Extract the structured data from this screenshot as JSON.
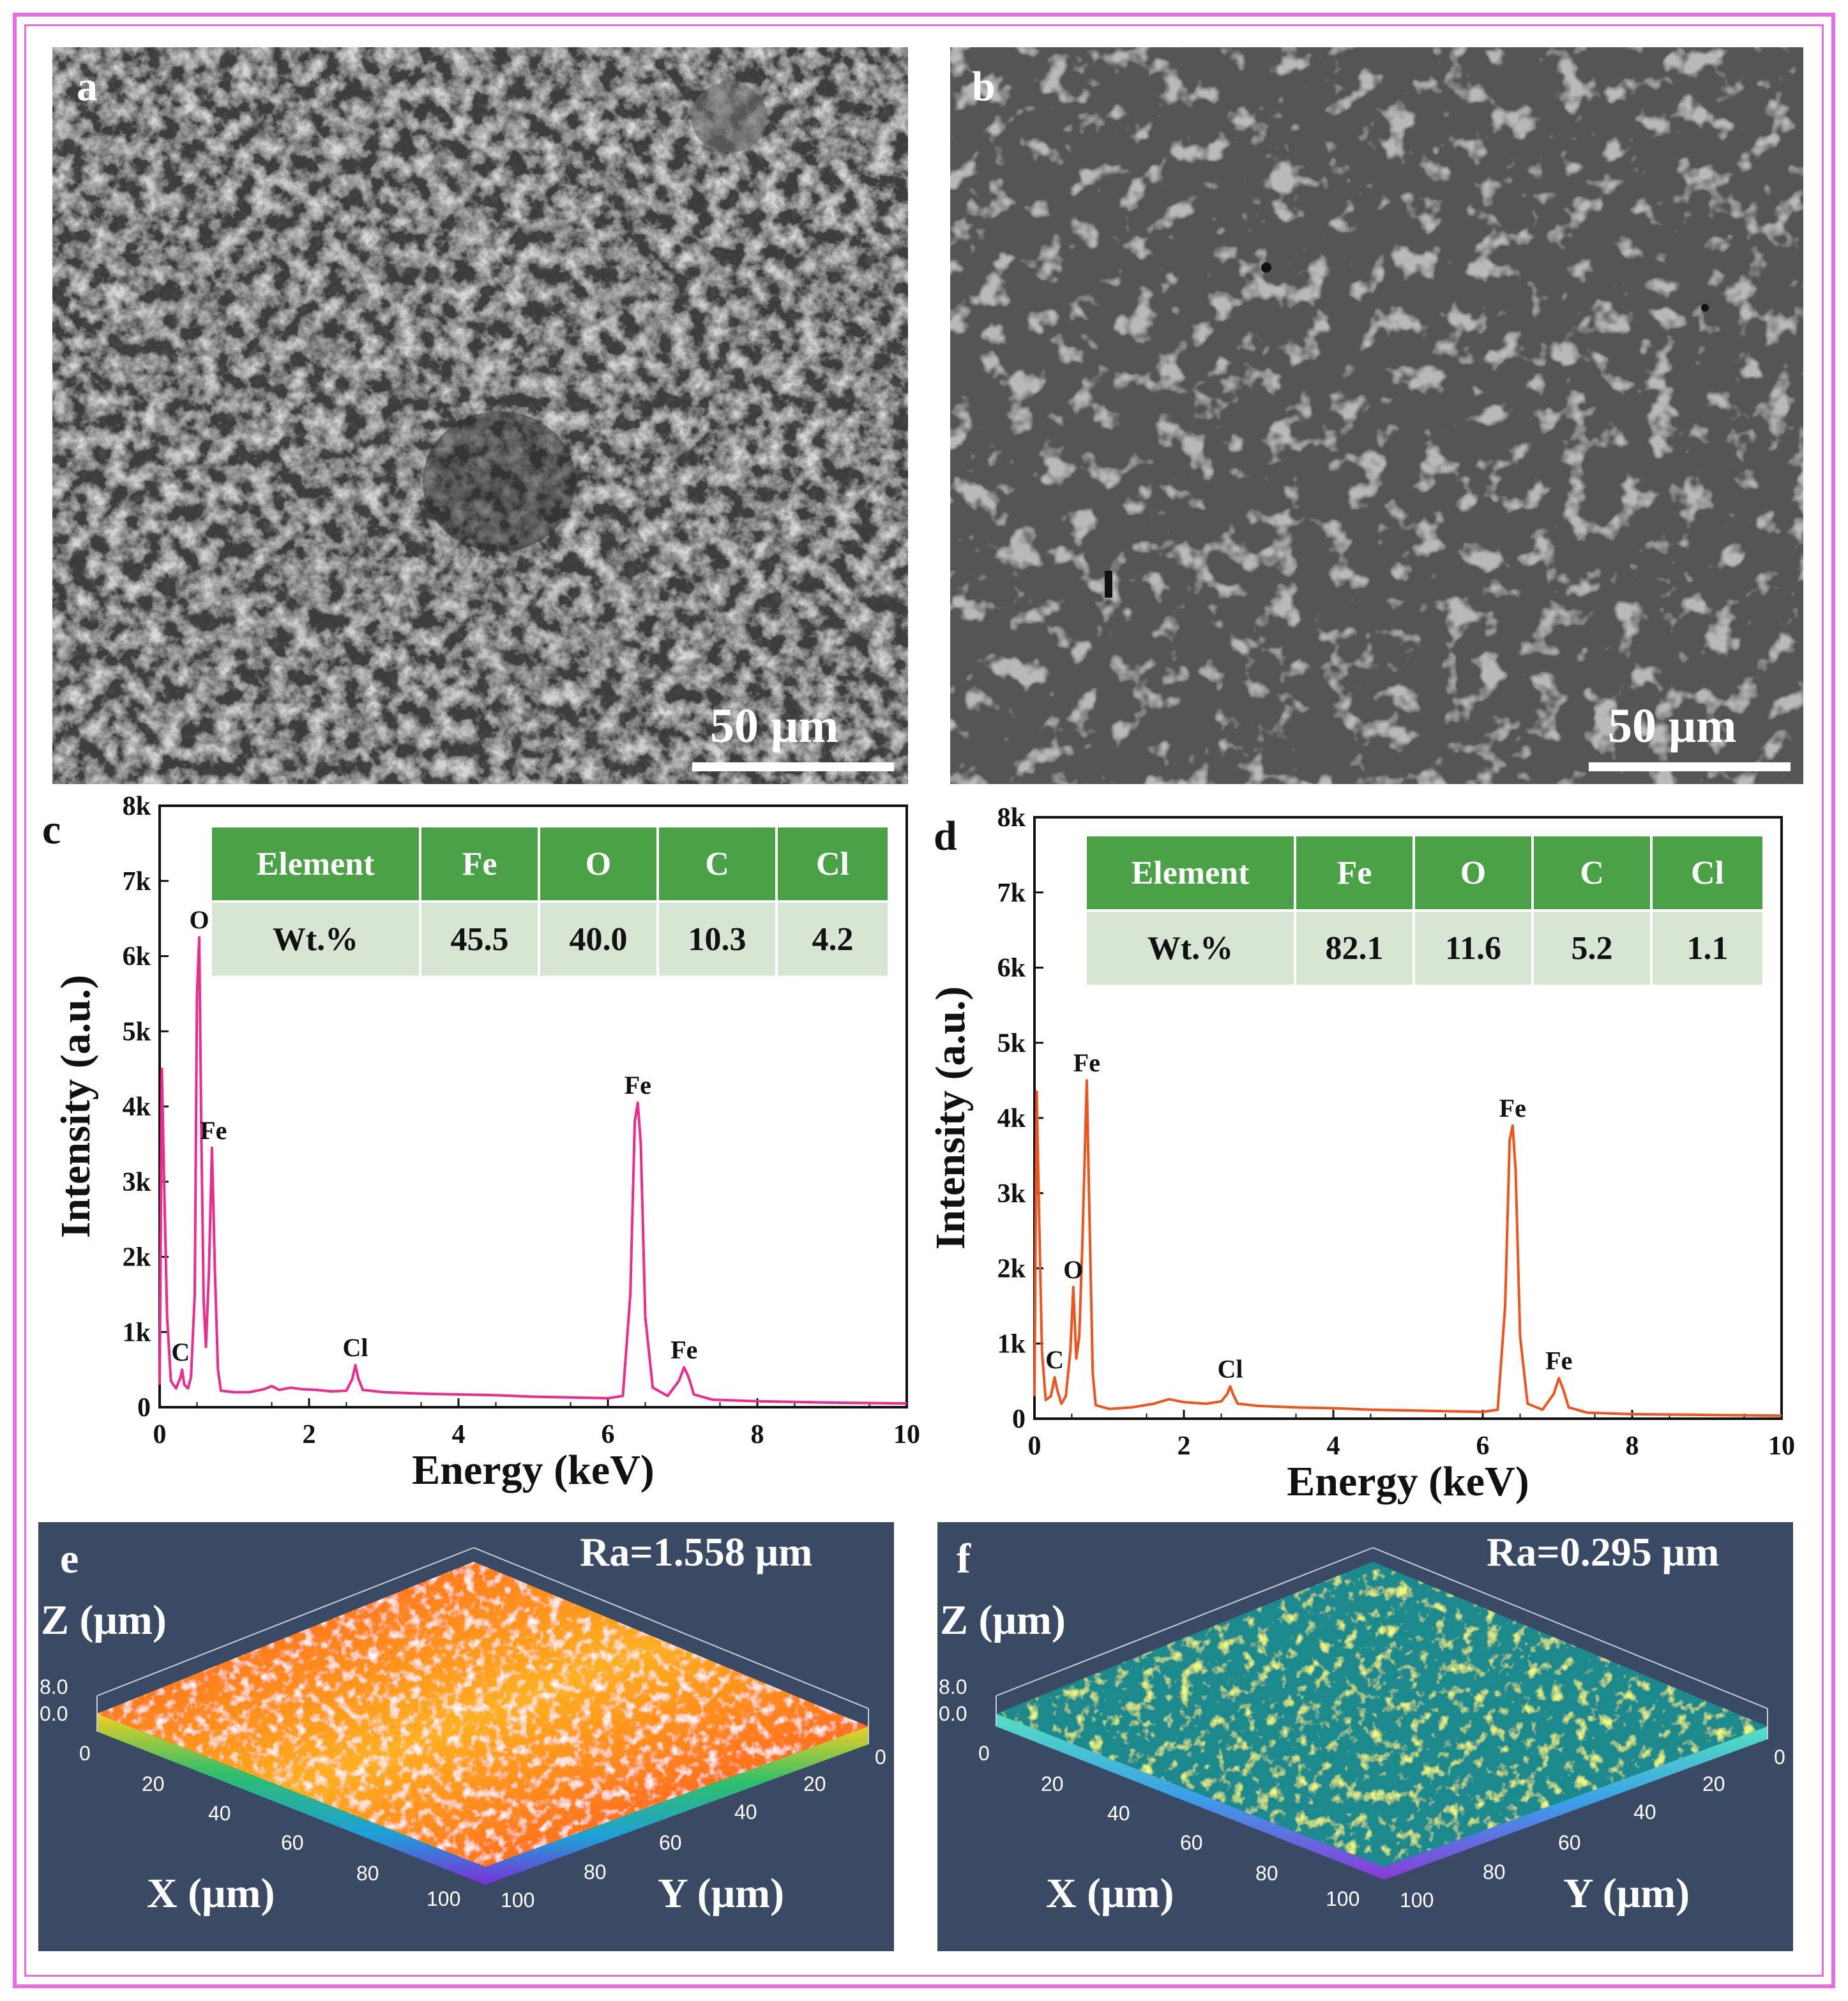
{
  "figure": {
    "border_color": "#e86ee0",
    "panel_labels": [
      "a",
      "b",
      "c",
      "d",
      "e",
      "f"
    ]
  },
  "sem": [
    {
      "label": "a",
      "scale_bar": "50 μm"
    },
    {
      "label": "b",
      "scale_bar": "50 μm"
    }
  ],
  "chart_data": [
    {
      "type": "line",
      "panel": "c",
      "xlabel": "Energy (keV)",
      "ylabel": "Intensity (a.u.)",
      "xlim": [
        0,
        10
      ],
      "ylim": [
        0,
        8000
      ],
      "x_ticks": [
        "0",
        "2",
        "4",
        "6",
        "8",
        "10"
      ],
      "y_ticks": [
        "0",
        "1k",
        "2k",
        "3k",
        "4k",
        "5k",
        "6k",
        "7k",
        "8k"
      ],
      "color": "#ee2a8c",
      "series": [
        {
          "name": "EDS spectrum",
          "points": [
            [
              0.0,
              300
            ],
            [
              0.03,
              4500
            ],
            [
              0.06,
              3000
            ],
            [
              0.1,
              1200
            ],
            [
              0.15,
              350
            ],
            [
              0.22,
              250
            ],
            [
              0.28,
              400
            ],
            [
              0.3,
              500
            ],
            [
              0.33,
              300
            ],
            [
              0.38,
              250
            ],
            [
              0.42,
              400
            ],
            [
              0.47,
              1500
            ],
            [
              0.5,
              5500
            ],
            [
              0.53,
              6250
            ],
            [
              0.56,
              3500
            ],
            [
              0.59,
              1400
            ],
            [
              0.62,
              800
            ],
            [
              0.66,
              1800
            ],
            [
              0.7,
              3450
            ],
            [
              0.74,
              1800
            ],
            [
              0.78,
              500
            ],
            [
              0.82,
              220
            ],
            [
              1.0,
              200
            ],
            [
              1.2,
              200
            ],
            [
              1.4,
              240
            ],
            [
              1.5,
              280
            ],
            [
              1.6,
              230
            ],
            [
              1.75,
              260
            ],
            [
              1.9,
              240
            ],
            [
              2.1,
              230
            ],
            [
              2.3,
              210
            ],
            [
              2.5,
              220
            ],
            [
              2.58,
              380
            ],
            [
              2.62,
              560
            ],
            [
              2.66,
              380
            ],
            [
              2.72,
              230
            ],
            [
              3.0,
              200
            ],
            [
              3.5,
              180
            ],
            [
              4.0,
              170
            ],
            [
              4.5,
              160
            ],
            [
              5.0,
              140
            ],
            [
              5.5,
              130
            ],
            [
              6.0,
              120
            ],
            [
              6.2,
              150
            ],
            [
              6.3,
              1500
            ],
            [
              6.36,
              3800
            ],
            [
              6.4,
              4050
            ],
            [
              6.44,
              3500
            ],
            [
              6.5,
              1200
            ],
            [
              6.6,
              260
            ],
            [
              6.8,
              150
            ],
            [
              6.95,
              350
            ],
            [
              7.02,
              530
            ],
            [
              7.08,
              400
            ],
            [
              7.15,
              170
            ],
            [
              7.4,
              100
            ],
            [
              8.0,
              80
            ],
            [
              9.0,
              60
            ],
            [
              10.0,
              50
            ]
          ]
        }
      ],
      "annotations": [
        {
          "text": "O",
          "x": 0.53,
          "y": 6250
        },
        {
          "text": "Fe",
          "x": 0.72,
          "y": 3450
        },
        {
          "text": "C",
          "x": 0.28,
          "y": 500
        },
        {
          "text": "Cl",
          "x": 2.62,
          "y": 560
        },
        {
          "text": "Fe",
          "x": 6.4,
          "y": 4050
        },
        {
          "text": "Fe",
          "x": 7.02,
          "y": 530
        }
      ],
      "table": {
        "headers": [
          "Element",
          "Fe",
          "O",
          "C",
          "Cl"
        ],
        "row": [
          "Wt.%",
          "45.5",
          "40.0",
          "10.3",
          "4.2"
        ]
      }
    },
    {
      "type": "line",
      "panel": "d",
      "xlabel": "Energy (keV)",
      "ylabel": "Intensity (a.u.)",
      "xlim": [
        0,
        10
      ],
      "ylim": [
        0,
        8000
      ],
      "x_ticks": [
        "0",
        "2",
        "4",
        "6",
        "8",
        "10"
      ],
      "y_ticks": [
        "0",
        "1k",
        "2k",
        "3k",
        "4k",
        "5k",
        "6k",
        "7k",
        "8k"
      ],
      "color": "#f0541e",
      "series": [
        {
          "name": "EDS spectrum",
          "points": [
            [
              0.0,
              300
            ],
            [
              0.03,
              4350
            ],
            [
              0.06,
              2800
            ],
            [
              0.1,
              900
            ],
            [
              0.15,
              250
            ],
            [
              0.22,
              300
            ],
            [
              0.27,
              550
            ],
            [
              0.3,
              400
            ],
            [
              0.36,
              200
            ],
            [
              0.42,
              300
            ],
            [
              0.48,
              900
            ],
            [
              0.52,
              1750
            ],
            [
              0.56,
              800
            ],
            [
              0.6,
              1100
            ],
            [
              0.64,
              2300
            ],
            [
              0.7,
              4500
            ],
            [
              0.74,
              2500
            ],
            [
              0.78,
              600
            ],
            [
              0.82,
              180
            ],
            [
              1.0,
              130
            ],
            [
              1.3,
              150
            ],
            [
              1.6,
              200
            ],
            [
              1.8,
              260
            ],
            [
              2.0,
              220
            ],
            [
              2.3,
              200
            ],
            [
              2.5,
              230
            ],
            [
              2.58,
              330
            ],
            [
              2.62,
              430
            ],
            [
              2.66,
              320
            ],
            [
              2.72,
              200
            ],
            [
              3.0,
              170
            ],
            [
              3.5,
              150
            ],
            [
              4.0,
              140
            ],
            [
              4.5,
              120
            ],
            [
              5.0,
              110
            ],
            [
              5.5,
              100
            ],
            [
              6.0,
              90
            ],
            [
              6.2,
              120
            ],
            [
              6.3,
              1500
            ],
            [
              6.36,
              3700
            ],
            [
              6.4,
              3900
            ],
            [
              6.44,
              3300
            ],
            [
              6.5,
              1100
            ],
            [
              6.6,
              200
            ],
            [
              6.8,
              120
            ],
            [
              6.95,
              330
            ],
            [
              7.02,
              540
            ],
            [
              7.08,
              380
            ],
            [
              7.15,
              150
            ],
            [
              7.4,
              80
            ],
            [
              8.0,
              60
            ],
            [
              9.0,
              50
            ],
            [
              10.0,
              40
            ]
          ]
        }
      ],
      "annotations": [
        {
          "text": "Fe",
          "x": 0.7,
          "y": 4500
        },
        {
          "text": "O",
          "x": 0.52,
          "y": 1750
        },
        {
          "text": "C",
          "x": 0.27,
          "y": 550
        },
        {
          "text": "Cl",
          "x": 2.62,
          "y": 430
        },
        {
          "text": "Fe",
          "x": 6.4,
          "y": 3900
        },
        {
          "text": "Fe",
          "x": 7.02,
          "y": 540
        }
      ],
      "table": {
        "headers": [
          "Element",
          "Fe",
          "O",
          "C",
          "Cl"
        ],
        "row": [
          "Wt.%",
          "82.1",
          "11.6",
          "5.2",
          "1.1"
        ]
      }
    }
  ],
  "roughness": [
    {
      "label": "e",
      "title": "Ra=1.558 μm",
      "z_axis": "Z (μm)",
      "x_axis": "X (μm)",
      "y_axis": "Y (μm)",
      "z_ticks": [
        "8.0",
        "0.0"
      ],
      "x_ticks": [
        "0",
        "20",
        "40",
        "60",
        "80",
        "100"
      ],
      "y_ticks": [
        "100",
        "80",
        "60",
        "40",
        "20",
        "0"
      ]
    },
    {
      "label": "f",
      "title": "Ra=0.295 μm",
      "z_axis": "Z (μm)",
      "x_axis": "X (μm)",
      "y_axis": "Y (μm)",
      "z_ticks": [
        "8.0",
        "0.0"
      ],
      "x_ticks": [
        "0",
        "20",
        "40",
        "60",
        "80",
        "100"
      ],
      "y_ticks": [
        "100",
        "80",
        "60",
        "40",
        "20",
        "0"
      ]
    }
  ]
}
